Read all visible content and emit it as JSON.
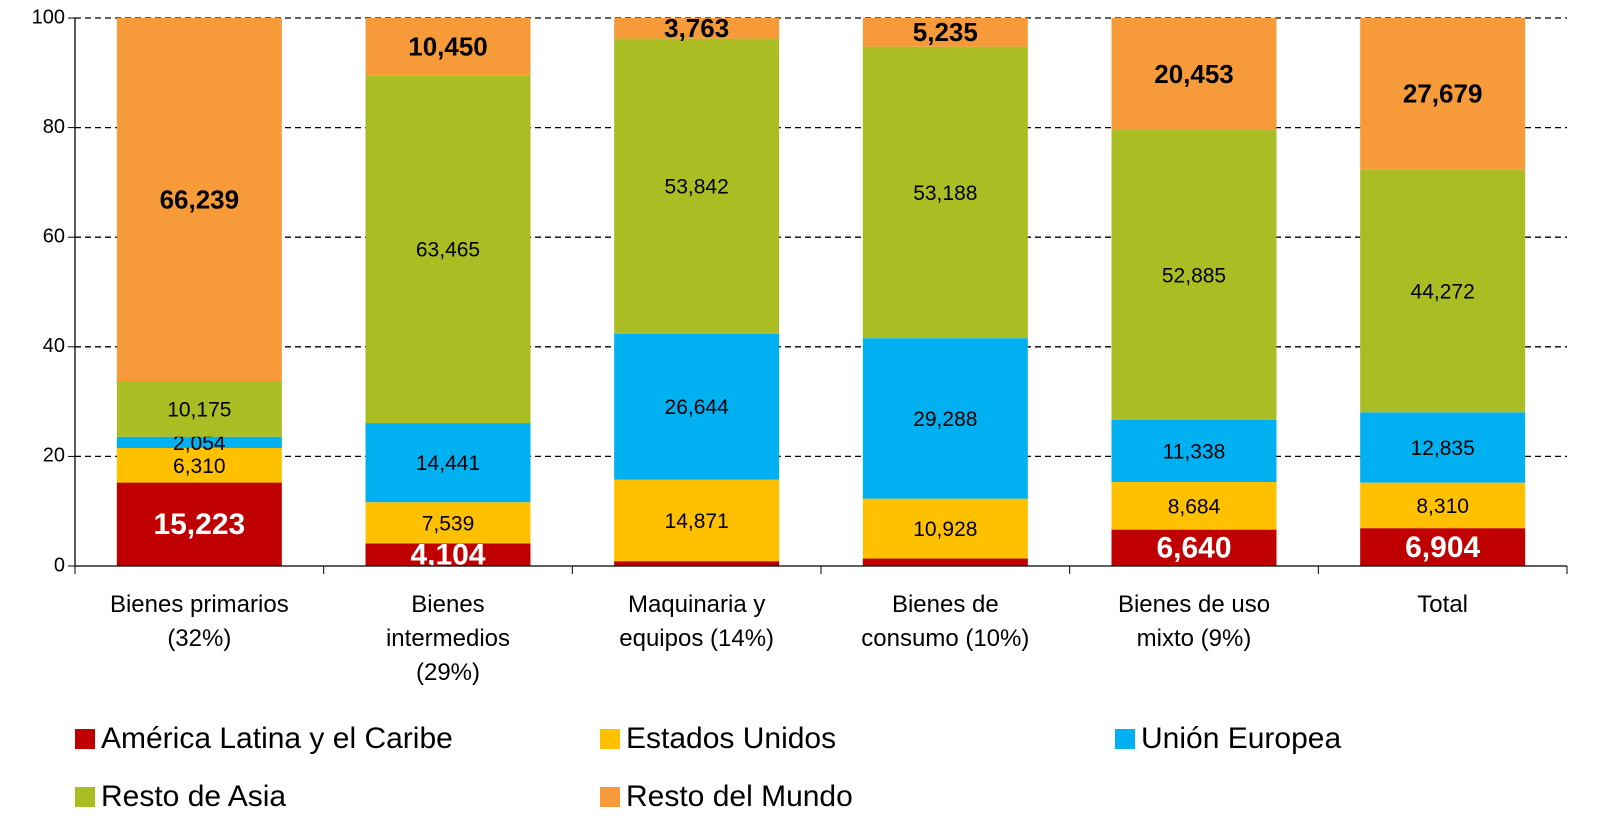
{
  "chart_data": {
    "type": "stacked_bar",
    "categories": [
      "Bienes primarios\n(32%)",
      "Bienes\nintermedios\n(29%)",
      "Maquinaria y\nequipos (14%)",
      "Bienes de\nconsumo (10%)",
      "Bienes de uso\nmixto (9%)",
      "Total"
    ],
    "series": [
      {
        "name": "América Latina y el Caribe",
        "color": "#c00000",
        "values": [
          15.223,
          4.104,
          0.88,
          1.36,
          6.64,
          6.904
        ],
        "value_labels": [
          "15,223",
          "4,104",
          null,
          null,
          "6,640",
          "6,904"
        ]
      },
      {
        "name": "Estados Unidos",
        "color": "#ffc000",
        "values": [
          6.31,
          7.539,
          14.871,
          10.928,
          8.684,
          8.31
        ],
        "value_labels": [
          "6,310",
          "7,539",
          "14,871",
          "10,928",
          "8,684",
          "8,310"
        ]
      },
      {
        "name": "Unión Europea",
        "color": "#00b0f0",
        "values": [
          2.054,
          14.441,
          26.644,
          29.288,
          11.338,
          12.835
        ],
        "value_labels": [
          "2,054",
          "14,441",
          "26,644",
          "29,288",
          "11,338",
          "12,835"
        ]
      },
      {
        "name": "Resto de Asia",
        "color": "#aabd22",
        "values": [
          10.175,
          63.465,
          53.842,
          53.188,
          52.885,
          44.272
        ],
        "value_labels": [
          "10,175",
          "63,465",
          "53,842",
          "53,188",
          "52,885",
          "44,272"
        ]
      },
      {
        "name": "Resto del Mundo",
        "color": "#f79a3a",
        "values": [
          66.239,
          10.45,
          3.763,
          5.235,
          20.453,
          27.679
        ],
        "value_labels": [
          "66,239",
          "10,450",
          "3,763",
          "5,235",
          "20,453",
          "27,679"
        ]
      }
    ],
    "ylim": [
      0,
      100
    ],
    "yticks": [
      0,
      20,
      40,
      60,
      80,
      100
    ],
    "grid": true
  }
}
